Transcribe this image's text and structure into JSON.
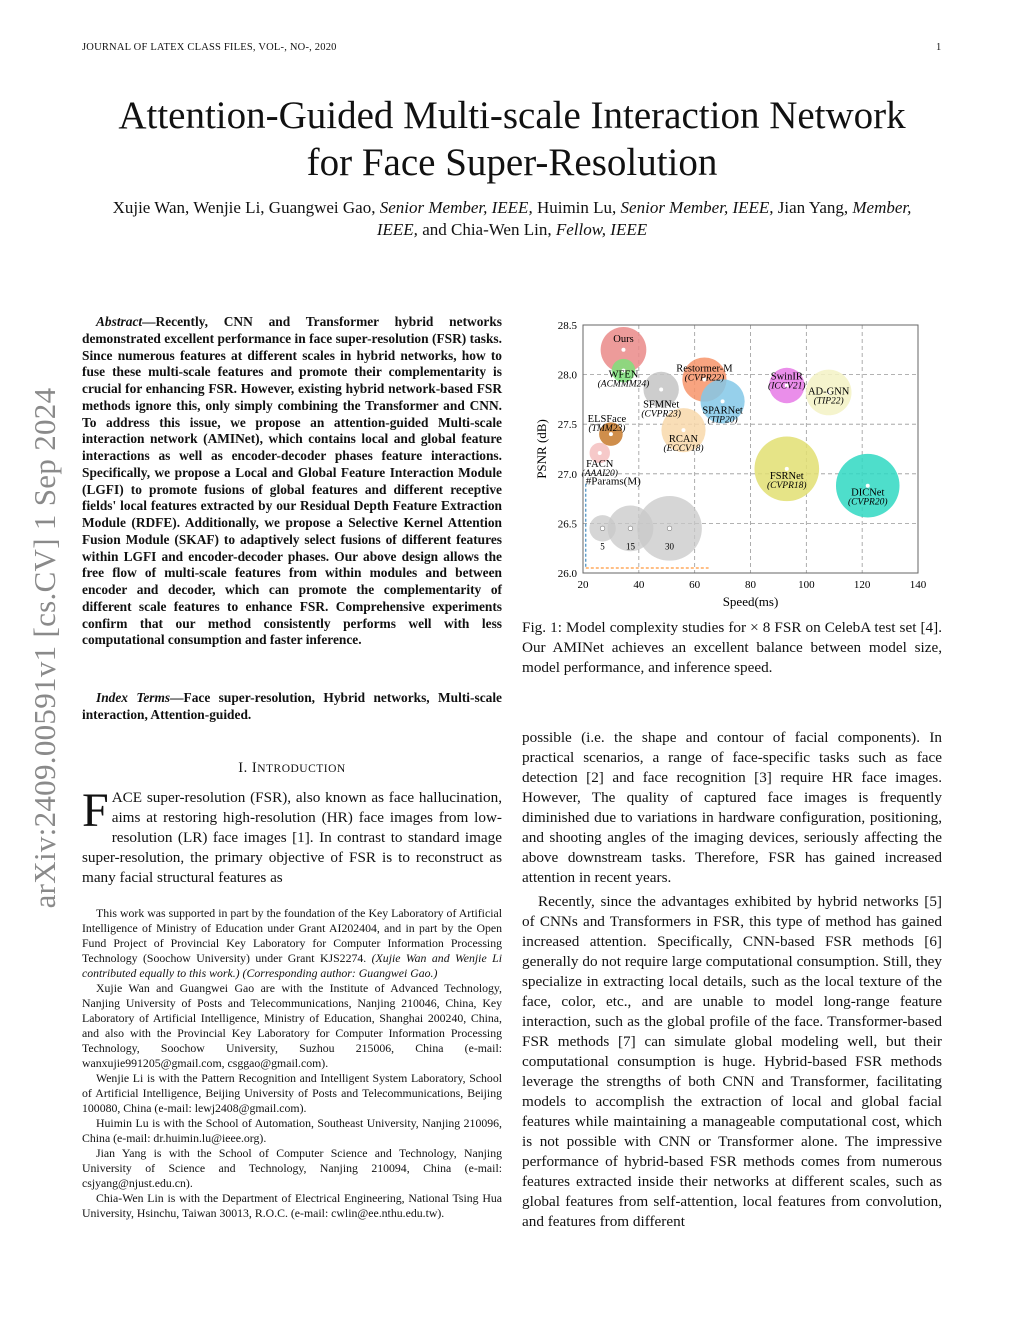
{
  "header": {
    "journal": "JOURNAL OF LATEX CLASS FILES, VOL-, NO-, 2020",
    "page_number": "1"
  },
  "arxiv_stamp": "arXiv:2409.00591v1  [cs.CV]  1 Sep 2024",
  "title": {
    "line1": "Attention-Guided Multi-scale Interaction Network",
    "line2": "for Face Super-Resolution"
  },
  "authors": {
    "a1": "Xujie Wan, Wenjie Li, Guangwei Gao,",
    "r1": "Senior Member, IEEE,",
    "a2": "Huimin Lu,",
    "r2": "Senior Member, IEEE,",
    "a3": "Jian Yang,",
    "r3": "Member, IEEE,",
    "a4": "and Chia-Wen Lin,",
    "r4": "Fellow, IEEE"
  },
  "abstract": {
    "label": "Abstract",
    "text": "—Recently, CNN and Transformer hybrid networks demonstrated excellent performance in face super-resolution (FSR) tasks. Since numerous features at different scales in hybrid networks, how to fuse these multi-scale features and promote their complementarity is crucial for enhancing FSR. However, existing hybrid network-based FSR methods ignore this, only simply combining the Transformer and CNN. To address this issue, we propose an attention-guided Multi-scale interaction network (AMINet), which contains local and global feature interactions as well as encoder-decoder phases feature interactions. Specifically, we propose a Local and Global Feature Interaction Module (LGFI) to promote fusions of global features and different receptive fields' local features extracted by our Residual Depth Feature Extraction Module (RDFE). Additionally, we propose a Selective Kernel Attention Fusion Module (SKAF) to adaptively select fusions of different features within LGFI and encoder-decoder phases. Our above design allows the free flow of multi-scale features from within modules and between encoder and decoder, which can promote the complementarity of different scale features to enhance FSR. Comprehensive experiments confirm that our method consistently performs well with less computational consumption and faster inference."
  },
  "index_terms": {
    "label": "Index Terms",
    "text": "—Face super-resolution, Hybrid networks, Multi-scale interaction, Attention-guided."
  },
  "section": {
    "number": "I.",
    "title_first": "I",
    "title_rest": "NTRODUCTION"
  },
  "intro": {
    "dropcap": "F",
    "text": "ACE super-resolution (FSR), also known as face hallucination, aims at restoring high-resolution (HR) face images from low-resolution (LR) face images [1]. In contrast to standard image super-resolution, the primary objective of FSR is to reconstruct as many facial structural features as"
  },
  "footnotes": [
    {
      "text": "This work was supported in part by the foundation of the Key Laboratory of Artificial Intelligence of Ministry of Education under Grant AI202404, and in part by the Open Fund Project of Provincial Key Laboratory for Computer Information Processing Technology (Soochow University) under Grant KJS2274. ",
      "italic": "(Xujie Wan and Wenjie Li contributed equally to this work.) (Corresponding author: Guangwei Gao.)"
    },
    {
      "text": "Xujie Wan and Guangwei Gao are with the Institute of Advanced Technology, Nanjing University of Posts and Telecommunications, Nanjing 210046, China, Key Laboratory of Artificial Intelligence, Ministry of Education, Shanghai 200240, China, and also with the Provincial Key Laboratory for Computer Information Processing Technology, Soochow University, Suzhou 215006, China (e-mail: wanxujie991205@gmail.com, csggao@gmail.com).",
      "italic": ""
    },
    {
      "text": "Wenjie Li is with the Pattern Recognition and Intelligent System Laboratory, School of Artificial Intelligence, Beijing University of Posts and Telecommunications, Beijing 100080, China (e-mail: lewj2408@gmail.com).",
      "italic": ""
    },
    {
      "text": "Huimin Lu is with the School of Automation, Southeast University, Nanjing 210096, China (e-mail: dr.huimin.lu@ieee.org).",
      "italic": ""
    },
    {
      "text": "Jian Yang is with the School of Computer Science and Technology, Nanjing University of Science and Technology, Nanjing 210094, China (e-mail: csjyang@njust.edu.cn).",
      "italic": ""
    },
    {
      "text": "Chia-Wen Lin is with the Department of Electrical Engineering, National Tsing Hua University, Hsinchu, Taiwan 30013, R.O.C. (e-mail: cwlin@ee.nthu.edu.tw).",
      "italic": ""
    }
  ],
  "figure": {
    "caption": "Fig. 1: Model complexity studies for × 8 FSR on CelebA test set [4]. Our AMINet achieves an excellent balance between model size, model performance, and inference speed."
  },
  "right_column": {
    "p1": "possible (i.e. the shape and contour of facial components). In practical scenarios, a range of face-specific tasks such as face detection [2] and face recognition [3] require HR face images. However, The quality of captured face images is frequently diminished due to variations in hardware configuration, positioning, and shooting angles of the imaging devices, seriously affecting the above downstream tasks. Therefore, FSR has gained increased attention in recent years.",
    "p2": "Recently, since the advantages exhibited by hybrid networks [5] of CNNs and Transformers in FSR, this type of method has gained increased attention. Specifically, CNN-based FSR methods [6] generally do not require large computational consumption. Still, they specialize in extracting local details, such as the local texture of the face, color, etc., and are unable to model long-range feature interaction, such as the global profile of the face. Transformer-based FSR methods [7] can simulate global modeling well, but their computational consumption is huge. Hybrid-based FSR methods leverage the strengths of both CNN and Transformer, facilitating models to accomplish the extraction of local and global facial features while maintaining a manageable computational cost, which is not possible with CNN or Transformer alone. The impressive performance of hybrid-based FSR methods comes from numerous features extracted inside their networks at different scales, such as global features from self-attention, local features from convolution, and features from different"
  },
  "chart_data": {
    "type": "scatter",
    "xlabel": "Speed(ms)",
    "ylabel": "PSNR (dB)",
    "xlim": [
      20,
      140
    ],
    "ylim": [
      26.0,
      28.5
    ],
    "xticks": [
      "20",
      "40",
      "60",
      "80",
      "100",
      "120",
      "140"
    ],
    "yticks": [
      "26.0",
      "26.5",
      "27.0",
      "27.5",
      "28.0",
      "28.5"
    ],
    "grid": true,
    "size_legend": {
      "title": "#Params(M)",
      "sizes": [
        5,
        15,
        30
      ],
      "labels": [
        "5",
        "15",
        "30"
      ],
      "color": "#c8c8c8"
    },
    "points": [
      {
        "name": "Ours",
        "venue": "",
        "x": 34.5,
        "y": 28.25,
        "params": 15,
        "color": "#ea8a88"
      },
      {
        "name": "WFEN",
        "venue": "(ACMMM24)",
        "x": 34.5,
        "y": 28.04,
        "params": 4,
        "color": "#7ee07a"
      },
      {
        "name": "SFMNet",
        "venue": "(CVPR23)",
        "x": 48,
        "y": 27.85,
        "params": 9,
        "color": "#c4c4c4"
      },
      {
        "name": "Restormer-M",
        "venue": "(CVPR22)",
        "x": 63.5,
        "y": 27.95,
        "params": 14,
        "color": "#f7946a"
      },
      {
        "name": "SPARNet",
        "venue": "(TIP20)",
        "x": 70,
        "y": 27.73,
        "params": 14,
        "color": "#84c8e8"
      },
      {
        "name": "SwinIR",
        "venue": "(ICCV21)",
        "x": 93,
        "y": 27.89,
        "params": 9,
        "color": "#e67ae6"
      },
      {
        "name": "AD-GNN",
        "venue": "(TIP22)",
        "x": 108,
        "y": 27.82,
        "params": 15,
        "color": "#f3f2c4"
      },
      {
        "name": "ELSFace",
        "venue": "(TMM23)",
        "x": 30,
        "y": 27.4,
        "params": 4,
        "color": "#c77a2c"
      },
      {
        "name": "RCAN",
        "venue": "(ECCV18)",
        "x": 56,
        "y": 27.44,
        "params": 14,
        "color": "#f8d8aa"
      },
      {
        "name": "FACN",
        "venue": "(AAAI20)",
        "x": 26,
        "y": 27.21,
        "params": 3,
        "color": "#f4c0c0"
      },
      {
        "name": "FSRNet",
        "venue": "(CVPR18)",
        "x": 93,
        "y": 27.05,
        "params": 30,
        "color": "#e2df72"
      },
      {
        "name": "DICNet",
        "venue": "(CVPR20)",
        "x": 122,
        "y": 26.88,
        "params": 29,
        "color": "#2fd8c2"
      }
    ]
  }
}
